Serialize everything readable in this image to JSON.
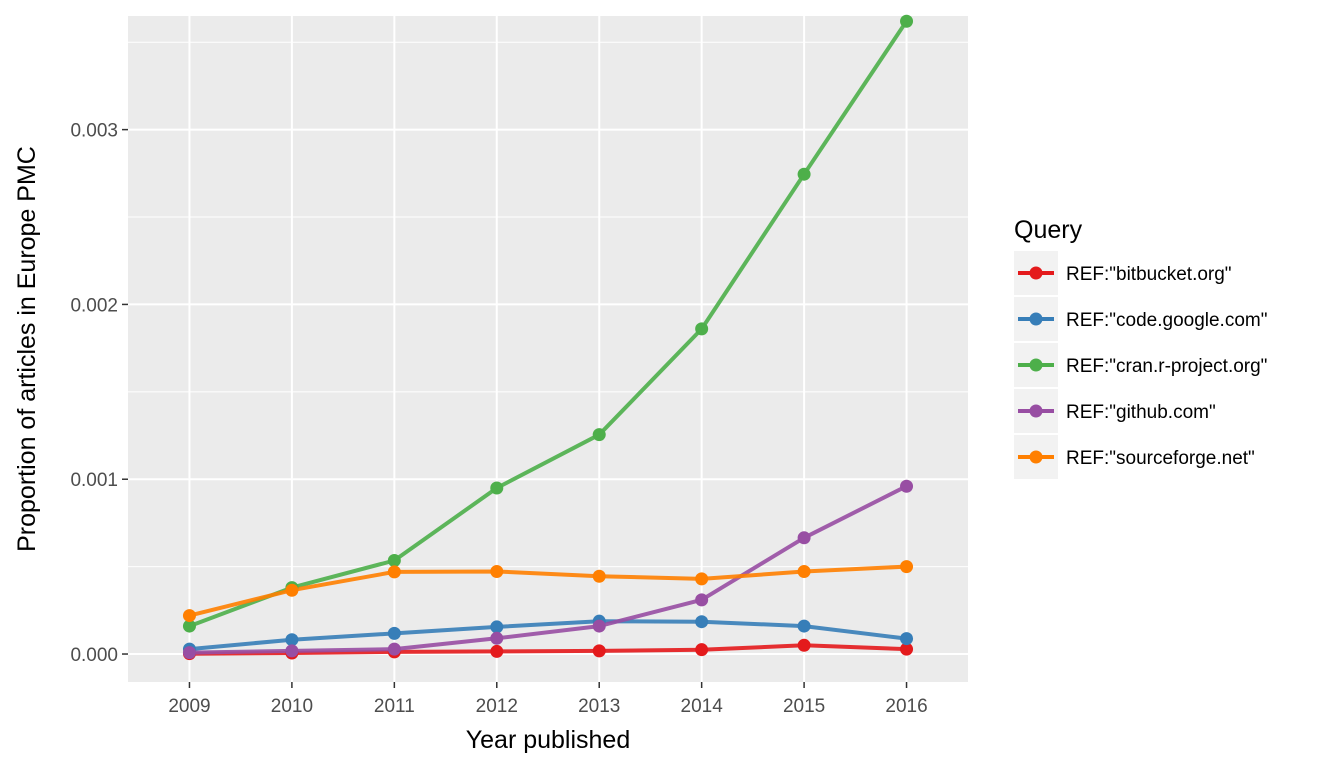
{
  "chart_data": {
    "type": "line",
    "title": "",
    "xlabel": "Year published",
    "ylabel": "Proportion of articles in Europe PMC",
    "x": [
      2009,
      2010,
      2011,
      2012,
      2013,
      2014,
      2015,
      2016
    ],
    "x_tick_labels": [
      "2009",
      "2010",
      "2011",
      "2012",
      "2013",
      "2014",
      "2015",
      "2016"
    ],
    "xlim": [
      2008.4,
      2016.6
    ],
    "ylim": [
      -0.00016,
      0.00365
    ],
    "y_ticks": [
      0,
      0.001,
      0.002,
      0.003
    ],
    "y_tick_labels": [
      "0.000",
      "0.001",
      "0.002",
      "0.003"
    ],
    "grid": true,
    "legend": {
      "title": "Query",
      "position": "right"
    },
    "series": [
      {
        "name": "REF:\"bitbucket.org\"",
        "color": "#E41A1C",
        "values": [
          2e-06,
          6e-06,
          1.2e-05,
          1.5e-05,
          1.8e-05,
          2.5e-05,
          5e-05,
          2.8e-05
        ]
      },
      {
        "name": "REF:\"code.google.com\"",
        "color": "#377EB8",
        "values": [
          2.8e-05,
          8.2e-05,
          0.000118,
          0.000155,
          0.000188,
          0.000185,
          0.00016,
          8.8e-05
        ]
      },
      {
        "name": "REF:\"cran.r-project.org\"",
        "color": "#4DAF4A",
        "values": [
          0.00016,
          0.00038,
          0.000535,
          0.00095,
          0.001255,
          0.00186,
          0.002745,
          0.00362
        ]
      },
      {
        "name": "REF:\"github.com\"",
        "color": "#984EA3",
        "values": [
          8e-06,
          1.8e-05,
          2.8e-05,
          9e-05,
          0.00016,
          0.00031,
          0.000665,
          0.00096
        ]
      },
      {
        "name": "REF:\"sourceforge.net\"",
        "color": "#FF7F00",
        "values": [
          0.00022,
          0.000365,
          0.00047,
          0.000472,
          0.000445,
          0.00043,
          0.000472,
          0.0005
        ]
      }
    ]
  }
}
